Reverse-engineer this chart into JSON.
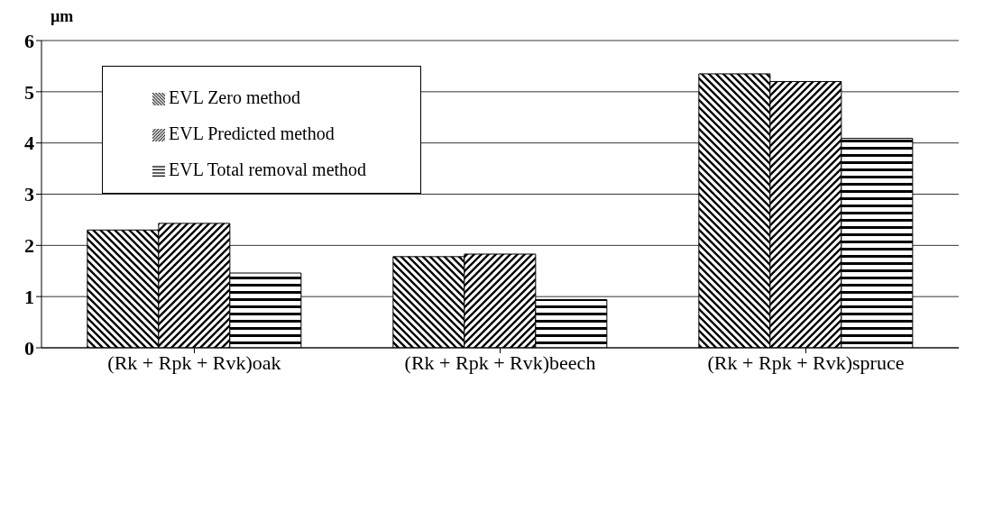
{
  "chart_data": {
    "type": "bar",
    "ylabel": "µm",
    "categories": [
      "(Rk + Rpk + Rvk)oak",
      "(Rk + Rpk + Rvk)beech",
      "(Rk + Rpk + Rvk)spruce"
    ],
    "series": [
      {
        "name": "EVL Zero method",
        "color": "#000000",
        "values": [
          2.3,
          1.78,
          5.35
        ]
      },
      {
        "name": "EVL Predicted method",
        "color": "#000000",
        "values": [
          2.43,
          1.83,
          5.2
        ]
      },
      {
        "name": "EVL Total removal method",
        "color": "#000000",
        "values": [
          1.46,
          0.94,
          4.09
        ]
      }
    ],
    "ylim": [
      0,
      6
    ],
    "yticks": [
      0,
      1,
      2,
      3,
      4,
      5,
      6
    ],
    "grid": "y",
    "legend": "top left"
  }
}
